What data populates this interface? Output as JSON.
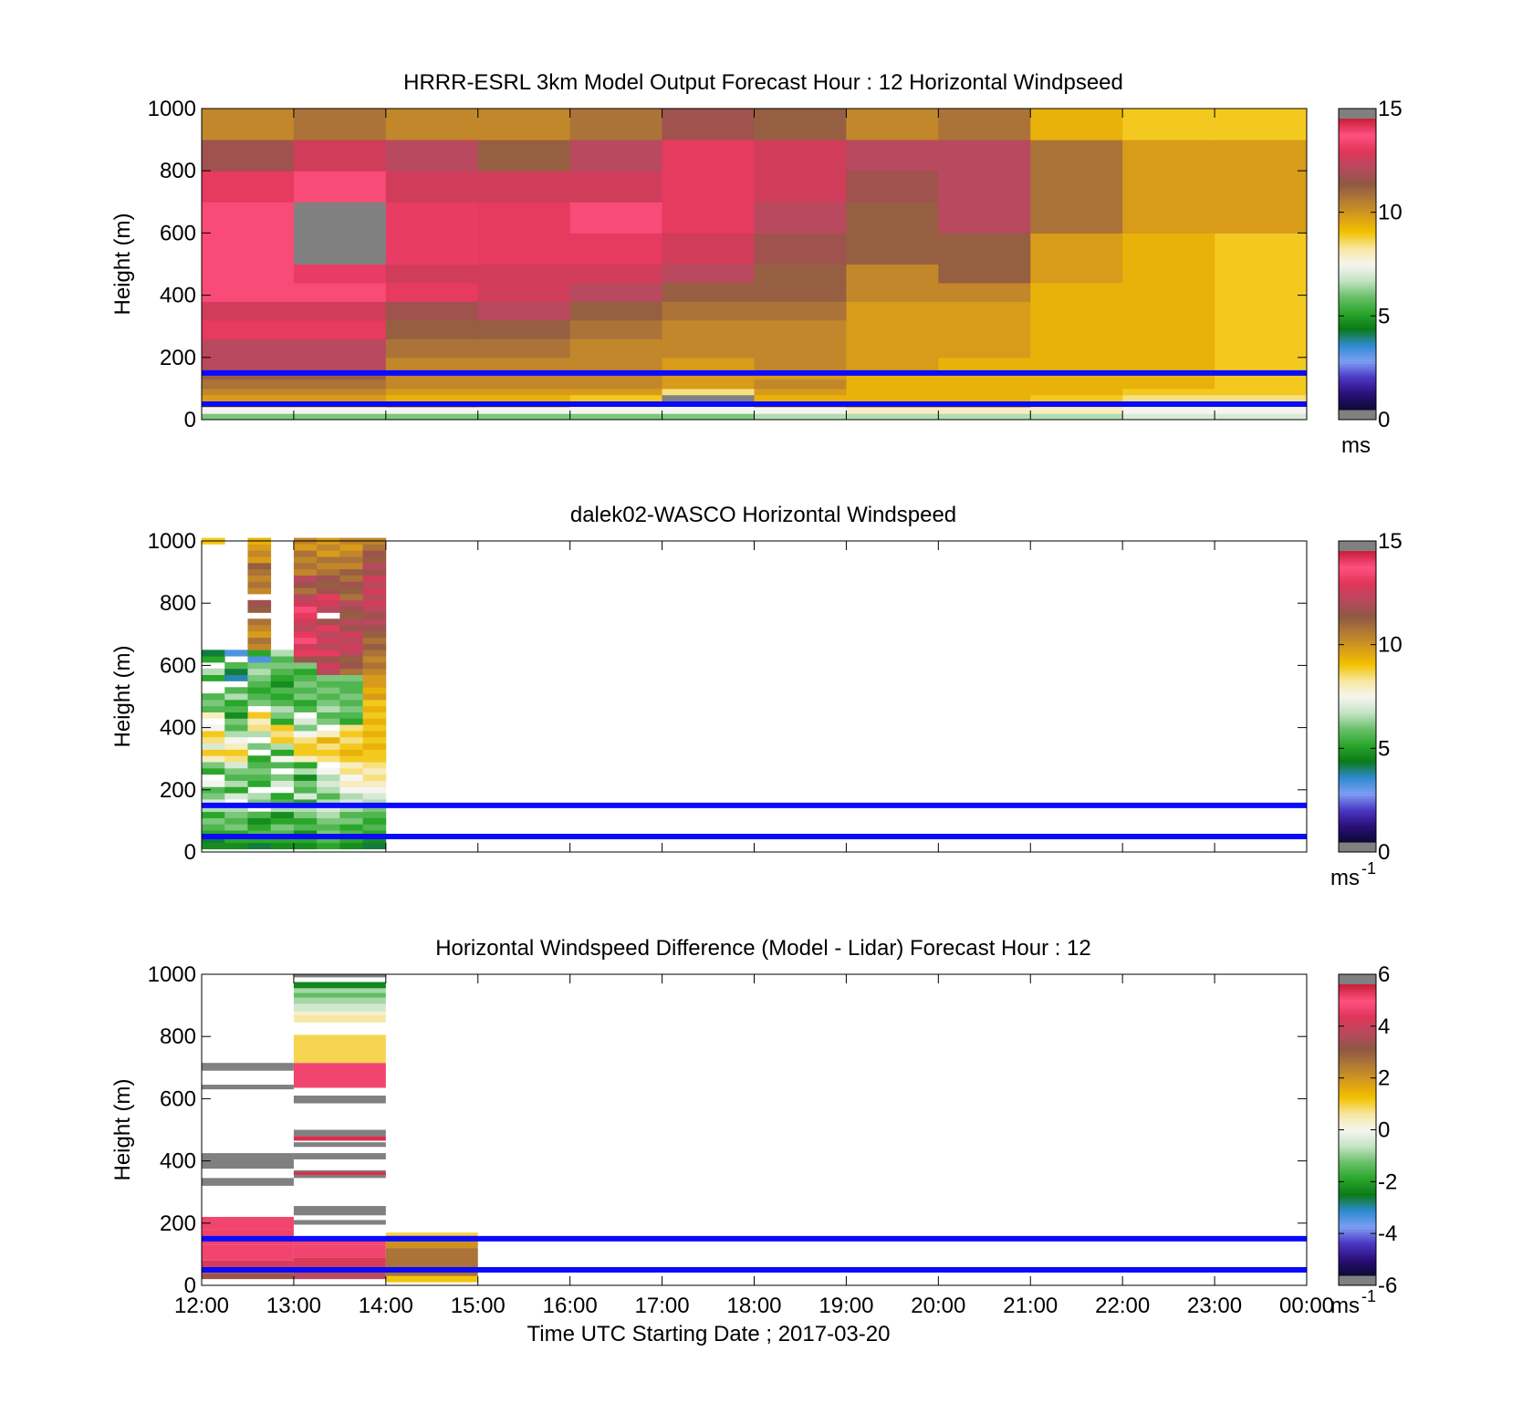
{
  "colors": {
    "reference_line": "#0a0aff",
    "missing_value": "#808080",
    "colormap_stops": [
      "#7f7f7f",
      "#0d0a33",
      "#2b0f7a",
      "#4b37c4",
      "#7d9ef2",
      "#2e8bd1",
      "#0a7a18",
      "#2aa62a",
      "#69c069",
      "#c4e3c4",
      "#f5f5f0",
      "#f8e7a0",
      "#f2c200",
      "#d89b1a",
      "#b27a35",
      "#8f5844",
      "#b8495e",
      "#e03557",
      "#ff5080",
      "#c81f3a",
      "#7f7f7f"
    ],
    "diff_colormap_stops": [
      "#7f7f7f",
      "#0d0a33",
      "#2b0f7a",
      "#4b37c4",
      "#7d9ef2",
      "#2e8bd1",
      "#0a7a18",
      "#2aa62a",
      "#69c069",
      "#c4e3c4",
      "#f5f5f0",
      "#f8e7a0",
      "#f2c200",
      "#d89b1a",
      "#b27a35",
      "#8f5844",
      "#b8495e",
      "#e03557",
      "#ff5080",
      "#c81f3a",
      "#7f7f7f"
    ]
  },
  "chart_data": [
    {
      "type": "heatmap",
      "title": "HRRR-ESRL 3km Model Output   Forecast Hour : 12 Horizontal Windpseed",
      "ylabel": "Height (m)",
      "xlabel": "",
      "x_ticks": [
        "12:00",
        "13:00",
        "14:00",
        "15:00",
        "16:00",
        "17:00",
        "18:00",
        "19:00",
        "20:00",
        "21:00",
        "22:00",
        "23:00",
        "00:00"
      ],
      "xlim_hours": [
        12,
        24
      ],
      "ylim": [
        0,
        1000
      ],
      "y_ticks": [
        "0",
        "200",
        "400",
        "600",
        "800",
        "1000"
      ],
      "colorbar": {
        "min": 0,
        "max": 15,
        "ticks": [
          "0",
          "5",
          "10",
          "15"
        ],
        "unit_label": "ms",
        "unit_sup": ""
      },
      "reference_lines_m": [
        50,
        150
      ],
      "height_levels_m": [
        0,
        20,
        40,
        60,
        80,
        100,
        130,
        160,
        200,
        260,
        320,
        380,
        440,
        500,
        600,
        700,
        800,
        900,
        1000
      ],
      "time_columns_hours": [
        12,
        13,
        14,
        15,
        16,
        17,
        18,
        19,
        20,
        21,
        22,
        23
      ],
      "values": [
        [
          6.0,
          6.0,
          6.0,
          6.0,
          6.0,
          6.0,
          6.5,
          6.5,
          6.5,
          6.5,
          7.0,
          7.0
        ],
        [
          7.5,
          7.5,
          7.5,
          7.5,
          7.5,
          7.5,
          7.5,
          8.0,
          8.0,
          8.0,
          7.5,
          7.5
        ],
        [
          9.0,
          9.0,
          9.5,
          9.0,
          8.0,
          7.5,
          9.0,
          9.5,
          9.5,
          8.5,
          8.0,
          8.0
        ],
        [
          10.0,
          10.0,
          9.5,
          9.5,
          9.0,
          -1,
          9.5,
          9.5,
          9.5,
          9.0,
          8.5,
          8.5
        ],
        [
          10.5,
          10.5,
          10.0,
          10.0,
          10.0,
          8.5,
          10.0,
          9.5,
          9.5,
          9.5,
          9.0,
          9.0
        ],
        [
          11.0,
          11.0,
          10.5,
          10.5,
          10.5,
          10.0,
          10.5,
          9.5,
          9.5,
          9.5,
          9.5,
          9.0
        ],
        [
          11.5,
          11.5,
          10.5,
          10.5,
          10.5,
          10.0,
          10.0,
          9.5,
          9.5,
          9.5,
          9.5,
          9.0
        ],
        [
          12.5,
          12.5,
          10.5,
          10.5,
          10.5,
          10.0,
          10.5,
          10.0,
          9.5,
          9.5,
          9.5,
          9.0
        ],
        [
          12.5,
          12.5,
          11.0,
          11.0,
          10.5,
          10.5,
          10.5,
          10.0,
          10.0,
          9.5,
          9.5,
          9.0
        ],
        [
          13.5,
          13.5,
          11.5,
          11.5,
          11.0,
          10.5,
          10.5,
          10.0,
          10.0,
          9.5,
          9.5,
          9.0
        ],
        [
          13.0,
          13.0,
          12.0,
          12.5,
          11.5,
          11.0,
          11.0,
          10.0,
          10.0,
          9.5,
          9.5,
          9.0
        ],
        [
          14.0,
          14.0,
          13.5,
          13.0,
          12.5,
          11.5,
          11.5,
          10.5,
          10.5,
          9.5,
          9.5,
          9.0
        ],
        [
          14.0,
          14.5,
          13.0,
          13.0,
          13.0,
          12.5,
          11.5,
          10.5,
          11.5,
          10.0,
          9.5,
          9.0
        ],
        [
          14.0,
          -1,
          14.5,
          13.5,
          13.5,
          13.0,
          12.0,
          11.5,
          11.5,
          10.0,
          9.5,
          9.0
        ],
        [
          14.0,
          -1,
          14.5,
          13.5,
          14.0,
          13.5,
          12.5,
          11.5,
          12.5,
          11.0,
          10.0,
          10.0
        ],
        [
          13.5,
          14.0,
          13.0,
          13.0,
          13.0,
          13.5,
          13.0,
          12.0,
          12.5,
          11.0,
          10.0,
          10.0
        ],
        [
          12.0,
          13.0,
          12.5,
          11.5,
          12.5,
          13.5,
          13.0,
          12.5,
          12.5,
          11.0,
          10.0,
          10.0
        ],
        [
          10.5,
          11.0,
          10.5,
          10.5,
          11.0,
          12.0,
          11.5,
          10.5,
          11.0,
          9.5,
          9.0,
          9.0
        ]
      ]
    },
    {
      "type": "heatmap",
      "title": "dalek02-WASCO  Horizontal Windspeed",
      "ylabel": "Height (m)",
      "xlabel": "",
      "x_ticks": [
        "12:00",
        "13:00",
        "14:00",
        "15:00",
        "16:00",
        "17:00",
        "18:00",
        "19:00",
        "20:00",
        "21:00",
        "22:00",
        "23:00",
        "00:00"
      ],
      "xlim_hours": [
        12,
        24
      ],
      "ylim": [
        0,
        1000
      ],
      "y_ticks": [
        "0",
        "200",
        "400",
        "600",
        "800",
        "1000"
      ],
      "colorbar": {
        "min": 0,
        "max": 15,
        "ticks": [
          "0",
          "5",
          "10",
          "15"
        ],
        "unit_label": "ms",
        "unit_sup": "-1"
      },
      "reference_lines_m": [
        50,
        150
      ],
      "time_columns_hours": [
        12.0,
        12.25,
        12.5,
        12.75,
        13.0,
        13.25,
        13.5,
        13.75
      ],
      "column_width_hours": 0.25,
      "bin_size_m": 20,
      "height_start_m": 10,
      "values": [
        [
          4.5,
          4.0,
          5.0,
          5.5,
          6.0,
          5.0,
          6.5,
          7.0,
          6.0,
          5.5,
          7.5,
          -1,
          5.0,
          6.0,
          8.0,
          9.0,
          7.0,
          8.5,
          9.0,
          7.5,
          -1,
          8.0,
          5.5,
          6.0,
          5.5,
          -1,
          -1,
          5.0,
          6.5,
          -1,
          5.0,
          4.0,
          -1,
          -1,
          -1,
          -1,
          -1,
          -1,
          -1,
          -1,
          -1,
          -1,
          -1,
          -1,
          -1,
          -1,
          -1,
          -1,
          -1,
          9.0
        ],
        [
          4.5,
          5.0,
          5.0,
          6.0,
          5.5,
          6.0,
          6.5,
          -1,
          7.0,
          5.0,
          6.5,
          5.5,
          6.0,
          7.0,
          8.5,
          9.0,
          8.0,
          7.5,
          6.5,
          5.5,
          6.0,
          4.5,
          5.5,
          5.0,
          6.5,
          5.5,
          -1,
          3.5,
          4.0,
          5.5,
          -1,
          3.0,
          -1,
          -1,
          -1,
          -1,
          -1,
          -1,
          -1,
          -1,
          -1,
          -1,
          -1,
          -1,
          -1,
          -1,
          -1,
          -1,
          -1,
          -1
        ],
        [
          4.0,
          5.0,
          5.5,
          5.0,
          4.5,
          5.5,
          -1,
          6.0,
          6.5,
          -1,
          5.0,
          5.5,
          6.0,
          5.5,
          5.0,
          -1,
          6.0,
          -1,
          6.5,
          8.5,
          8.0,
          9.0,
          -1,
          6.0,
          5.5,
          5.0,
          5.5,
          6.0,
          6.5,
          6.0,
          3.0,
          5.0,
          10.5,
          11.0,
          10.0,
          10.5,
          11.0,
          -1,
          11.5,
          12.0,
          -1,
          10.5,
          11.0,
          10.5,
          11.0,
          11.5,
          10.0,
          10.5,
          10.0,
          9.5
        ],
        [
          4.5,
          5.0,
          5.5,
          6.0,
          5.0,
          4.5,
          6.5,
          5.5,
          5.0,
          -1,
          7.0,
          6.0,
          -1,
          5.5,
          7.5,
          5.0,
          6.5,
          9.0,
          8.5,
          9.0,
          5.0,
          6.0,
          6.5,
          5.5,
          5.0,
          5.5,
          4.5,
          5.0,
          5.5,
          6.0,
          5.5,
          6.5,
          -1,
          -1,
          -1,
          -1,
          -1,
          -1,
          -1,
          -1,
          -1,
          -1,
          -1,
          -1,
          -1,
          -1,
          -1,
          -1,
          -1,
          -1
        ],
        [
          4.5,
          5.0,
          4.5,
          5.5,
          5.0,
          6.0,
          6.5,
          5.0,
          7.0,
          5.5,
          6.0,
          4.5,
          6.5,
          5.0,
          8.0,
          9.0,
          9.0,
          8.5,
          7.5,
          6.0,
          7.0,
          -1,
          5.5,
          5.0,
          6.0,
          5.5,
          6.0,
          5.5,
          5.0,
          6.0,
          12.0,
          13.5,
          13.0,
          14.0,
          13.5,
          12.5,
          13.0,
          13.5,
          14.0,
          13.0,
          12.5,
          11.0,
          12.0,
          12.5,
          10.5,
          11.0,
          10.5,
          11.0,
          10.0,
          10.5
        ],
        [
          5.0,
          5.5,
          6.0,
          5.5,
          6.0,
          6.5,
          7.0,
          6.5,
          5.5,
          6.5,
          7.0,
          6.5,
          7.5,
          -1,
          8.5,
          9.0,
          8.5,
          9.5,
          8.0,
          -1,
          6.0,
          5.5,
          6.5,
          6.0,
          5.5,
          6.0,
          5.5,
          6.0,
          12.5,
          13.0,
          12.0,
          13.5,
          12.5,
          13.0,
          12.5,
          13.5,
          12.0,
          -1,
          12.5,
          13.0,
          13.5,
          12.0,
          11.5,
          12.0,
          11.0,
          10.5,
          11.0,
          10.0,
          10.5,
          10.0
        ],
        [
          4.5,
          5.0,
          5.5,
          5.0,
          6.0,
          5.5,
          6.5,
          7.0,
          6.5,
          7.5,
          8.0,
          7.5,
          8.5,
          8.0,
          9.0,
          9.5,
          9.0,
          8.5,
          9.0,
          8.5,
          5.0,
          5.5,
          6.0,
          5.5,
          6.0,
          5.5,
          5.5,
          6.0,
          11.0,
          12.0,
          11.5,
          12.5,
          13.0,
          12.5,
          13.0,
          12.0,
          12.5,
          11.5,
          12.0,
          12.5,
          11.0,
          11.5,
          12.0,
          11.0,
          11.5,
          10.5,
          11.0,
          10.5,
          10.0,
          10.5
        ],
        [
          4.0,
          4.5,
          5.0,
          5.5,
          5.0,
          5.5,
          6.0,
          6.5,
          7.0,
          7.5,
          8.0,
          8.5,
          8.0,
          8.5,
          9.0,
          9.0,
          9.5,
          9.0,
          9.5,
          9.0,
          9.5,
          9.0,
          9.5,
          9.0,
          10.0,
          9.5,
          10.0,
          10.0,
          10.5,
          11.0,
          10.5,
          11.0,
          11.5,
          11.0,
          11.5,
          12.0,
          12.5,
          12.0,
          12.5,
          13.0,
          12.5,
          13.0,
          12.5,
          13.0,
          12.0,
          12.5,
          11.5,
          12.0,
          11.0,
          10.5
        ]
      ]
    },
    {
      "type": "heatmap",
      "title": "Horizontal Windspeed Difference (Model - Lidar) Forecast Hour : 12",
      "ylabel": "Height (m)",
      "xlabel": "Time UTC  Starting Date ; 2017-03-20",
      "x_ticks": [
        "12:00",
        "13:00",
        "14:00",
        "15:00",
        "16:00",
        "17:00",
        "18:00",
        "19:00",
        "20:00",
        "21:00",
        "22:00",
        "23:00",
        "00:00"
      ],
      "xlim_hours": [
        12,
        24
      ],
      "ylim": [
        0,
        1000
      ],
      "y_ticks": [
        "0",
        "200",
        "400",
        "600",
        "800",
        "1000"
      ],
      "colorbar": {
        "min": -6,
        "max": 6,
        "ticks": [
          "-6",
          "-4",
          "-2",
          "0",
          "2",
          "4",
          "6"
        ],
        "unit_label": "ms",
        "unit_sup": "-1"
      },
      "reference_lines_m": [
        50,
        150
      ],
      "bands": [
        {
          "x0": 12,
          "x1": 13,
          "y0": 20,
          "y1": 40,
          "value": 3.5
        },
        {
          "x0": 12,
          "x1": 13,
          "y0": 40,
          "y1": 80,
          "value": 4.5
        },
        {
          "x0": 12,
          "x1": 13,
          "y0": 80,
          "y1": 130,
          "value": 5.5
        },
        {
          "x0": 12,
          "x1": 13,
          "y0": 130,
          "y1": 180,
          "value": 5.0
        },
        {
          "x0": 12,
          "x1": 13,
          "y0": 180,
          "y1": 220,
          "value": 5.5
        },
        {
          "x0": 12,
          "x1": 13,
          "y0": 320,
          "y1": 345,
          "value": 7
        },
        {
          "x0": 12,
          "x1": 13,
          "y0": 375,
          "y1": 425,
          "value": 7
        },
        {
          "x0": 12,
          "x1": 13,
          "y0": 630,
          "y1": 645,
          "value": 7
        },
        {
          "x0": 12,
          "x1": 13,
          "y0": 690,
          "y1": 715,
          "value": 7
        },
        {
          "x0": 13,
          "x1": 14,
          "y0": 20,
          "y1": 50,
          "value": 4.0
        },
        {
          "x0": 13,
          "x1": 14,
          "y0": 50,
          "y1": 90,
          "value": 4.5
        },
        {
          "x0": 13,
          "x1": 14,
          "y0": 90,
          "y1": 130,
          "value": 5.5
        },
        {
          "x0": 13,
          "x1": 14,
          "y0": 130,
          "y1": 150,
          "value": 5.5
        },
        {
          "x0": 13,
          "x1": 14,
          "y0": 195,
          "y1": 210,
          "value": 7
        },
        {
          "x0": 13,
          "x1": 14,
          "y0": 225,
          "y1": 255,
          "value": 7
        },
        {
          "x0": 13,
          "x1": 14,
          "y0": 345,
          "y1": 370,
          "value": 7
        },
        {
          "x0": 13,
          "x1": 14,
          "y0": 355,
          "y1": 365,
          "value": 5.8
        },
        {
          "x0": 13,
          "x1": 14,
          "y0": 405,
          "y1": 425,
          "value": 7
        },
        {
          "x0": 13,
          "x1": 14,
          "y0": 445,
          "y1": 460,
          "value": 7
        },
        {
          "x0": 13,
          "x1": 14,
          "y0": 465,
          "y1": 480,
          "value": 5.8
        },
        {
          "x0": 13,
          "x1": 14,
          "y0": 480,
          "y1": 500,
          "value": 7
        },
        {
          "x0": 13,
          "x1": 14,
          "y0": 585,
          "y1": 610,
          "value": 7
        },
        {
          "x0": 13,
          "x1": 14,
          "y0": 635,
          "y1": 715,
          "value": 5.5
        },
        {
          "x0": 13,
          "x1": 14,
          "y0": 715,
          "y1": 805,
          "value": 1.0
        },
        {
          "x0": 13,
          "x1": 14,
          "y0": 845,
          "y1": 870,
          "value": 0.6
        },
        {
          "x0": 13,
          "x1": 14,
          "y0": 870,
          "y1": 880,
          "value": 0.3
        },
        {
          "x0": 13,
          "x1": 14,
          "y0": 880,
          "y1": 905,
          "value": -0.5
        },
        {
          "x0": 13,
          "x1": 14,
          "y0": 905,
          "y1": 925,
          "value": -0.9
        },
        {
          "x0": 13,
          "x1": 14,
          "y0": 925,
          "y1": 940,
          "value": -1.4
        },
        {
          "x0": 13,
          "x1": 14,
          "y0": 940,
          "y1": 955,
          "value": -0.9
        },
        {
          "x0": 13,
          "x1": 14,
          "y0": 955,
          "y1": 975,
          "value": -2.5
        },
        {
          "x0": 13,
          "x1": 14,
          "y0": 990,
          "y1": 1000,
          "value": 7
        },
        {
          "x0": 14,
          "x1": 15,
          "y0": 10,
          "y1": 30,
          "value": 1.3
        },
        {
          "x0": 14,
          "x1": 15,
          "y0": 30,
          "y1": 120,
          "value": 2.8
        },
        {
          "x0": 14,
          "x1": 15,
          "y0": 120,
          "y1": 160,
          "value": 2.2
        },
        {
          "x0": 14,
          "x1": 15,
          "y0": 160,
          "y1": 170,
          "value": 1.0
        }
      ]
    }
  ]
}
